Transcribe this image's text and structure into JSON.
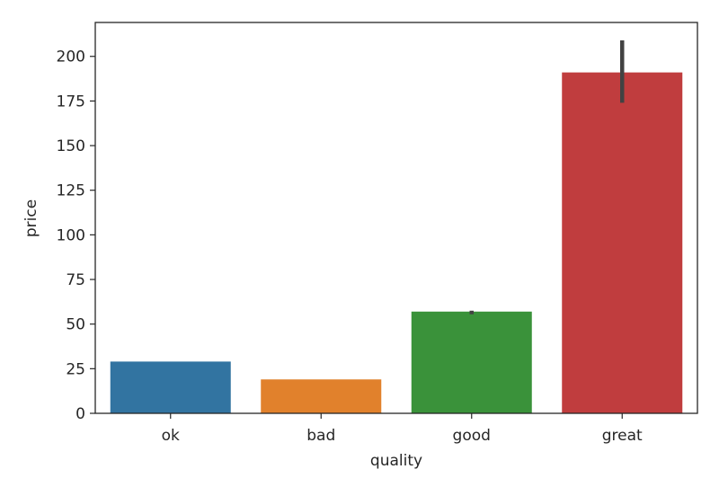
{
  "chart_data": {
    "type": "bar",
    "title": "",
    "xlabel": "quality",
    "ylabel": "price",
    "categories": [
      "ok",
      "bad",
      "good",
      "great"
    ],
    "values": [
      29,
      19,
      57,
      191
    ],
    "error_bars": [
      {
        "low": 29,
        "high": 29
      },
      {
        "low": 19,
        "high": 19
      },
      {
        "low": 55.5,
        "high": 57.5
      },
      {
        "low": 174,
        "high": 209
      }
    ],
    "colors": [
      "#3274a1",
      "#e1812c",
      "#3a923a",
      "#c03d3e"
    ],
    "error_color": "#424242",
    "ylim": [
      0,
      219
    ],
    "yticks": [
      0,
      25,
      50,
      75,
      100,
      125,
      150,
      175,
      200
    ],
    "grid": false,
    "legend": "none"
  }
}
